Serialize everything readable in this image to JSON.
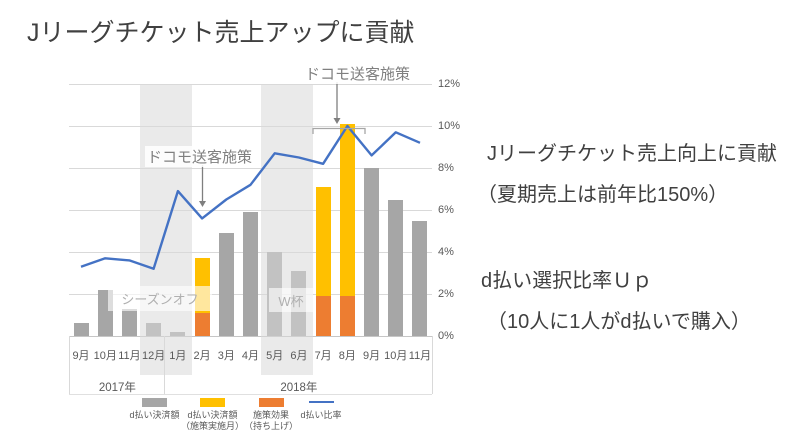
{
  "title": "Jリーグチケット売上アップに貢献",
  "right_panel": {
    "line1": "Jリーグチケット売上向上に貢献",
    "line2": "（夏期売上は前年比150%）",
    "line3": "d払い選択比率Ｕｐ",
    "line4": "（10人に1人がd払いで購入）"
  },
  "chart_data": {
    "type": "bar",
    "subtype": "stacked-bar-with-line-combo",
    "categories": [
      "9月",
      "10月",
      "11月",
      "12月",
      "1月",
      "2月",
      "3月",
      "4月",
      "5月",
      "6月",
      "7月",
      "8月",
      "9月",
      "10月",
      "11月"
    ],
    "category_groups": [
      {
        "label": "2017年",
        "from": 0,
        "to": 3
      },
      {
        "label": "2018年",
        "from": 4,
        "to": 14
      }
    ],
    "y_axis": {
      "side": "right",
      "min": 0,
      "max": 12,
      "step": 2,
      "ticks": [
        "0%",
        "2%",
        "4%",
        "6%",
        "8%",
        "10%",
        "12%"
      ],
      "grid": true
    },
    "series": [
      {
        "name": "d払い決済額",
        "type": "bar",
        "color": "#a6a6a6",
        "values": [
          0.6,
          2.2,
          1.3,
          0.6,
          0.2,
          null,
          4.9,
          5.9,
          4.0,
          3.1,
          null,
          null,
          8.0,
          6.5,
          5.5
        ]
      },
      {
        "name": "施策効果（持ち上げ）",
        "type": "bar",
        "stack": "campaign",
        "color": "#ed7d31",
        "values": [
          null,
          null,
          null,
          null,
          null,
          1.1,
          null,
          null,
          null,
          null,
          1.9,
          1.9,
          null,
          null,
          null
        ]
      },
      {
        "name": "d払い決済額（施策実施月）",
        "type": "bar",
        "stack": "campaign",
        "color": "#ffc000",
        "values": [
          null,
          null,
          null,
          null,
          null,
          2.6,
          null,
          null,
          null,
          null,
          5.2,
          8.2,
          null,
          null,
          null
        ]
      },
      {
        "name": "d払い比率",
        "type": "line",
        "color": "#4472c4",
        "values": [
          3.3,
          3.7,
          3.6,
          3.2,
          6.9,
          5.6,
          6.5,
          7.2,
          8.7,
          8.5,
          8.2,
          10.0,
          8.6,
          9.7,
          9.2
        ]
      }
    ],
    "bands": [
      {
        "label": "シーズンオフ",
        "from": 3,
        "to": 4
      },
      {
        "label": "W杯",
        "from": 8,
        "to": 9
      }
    ],
    "annotations": [
      {
        "text": "ドコモ送客施策",
        "target": "2月"
      },
      {
        "text": "ドコモ送客施策",
        "target": "7月-8月"
      }
    ],
    "legend": [
      {
        "label": "d払い決済額",
        "color": "#a6a6a6",
        "marker": "rect"
      },
      {
        "label": "d払い決済額\n（施策実施月）",
        "color": "#ffc000",
        "marker": "rect"
      },
      {
        "label": "施策効果\n（持ち上げ）",
        "color": "#ed7d31",
        "marker": "rect"
      },
      {
        "label": "d払い比率",
        "color": "#4472c4",
        "marker": "line"
      }
    ]
  }
}
